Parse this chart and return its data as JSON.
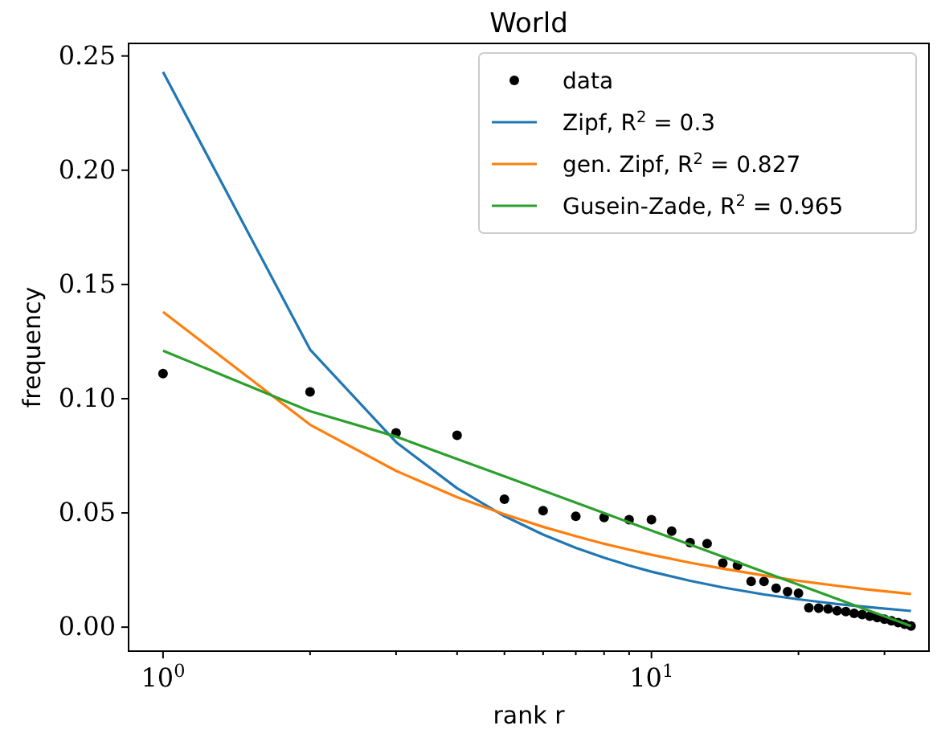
{
  "chart_data": {
    "type": "scatter",
    "title": "World",
    "xlabel": "rank r",
    "ylabel": "frequency",
    "log": "x",
    "legend": "top right",
    "grid": false,
    "xlim": [
      0.85,
      37
    ],
    "xticks": [
      {
        "value": 1,
        "label": "10$^{0}$"
      },
      {
        "value": 10,
        "label": "10$^{1}$"
      },
      {
        "value": 2,
        "label": null
      },
      {
        "value": 3,
        "label": null
      },
      {
        "value": 4,
        "label": null
      },
      {
        "value": 5,
        "label": null
      },
      {
        "value": 6,
        "label": null
      },
      {
        "value": 7,
        "label": null
      },
      {
        "value": 8,
        "label": null
      },
      {
        "value": 9,
        "label": null
      },
      {
        "value": 20,
        "label": null
      },
      {
        "value": 30,
        "label": null
      }
    ],
    "ylim": [
      -0.0105,
      0.2555
    ],
    "yticks": [
      {
        "value": 0,
        "label": "0.00"
      },
      {
        "value": 0.05,
        "label": "0.05"
      },
      {
        "value": 0.1,
        "label": "0.10"
      },
      {
        "value": 0.15,
        "label": "0.15"
      },
      {
        "value": 0.2,
        "label": "0.20"
      },
      {
        "value": 0.25,
        "label": "0.25"
      }
    ],
    "series": [
      {
        "name": "data",
        "marker": "circle",
        "color": "#000000",
        "x": [
          1,
          2,
          3,
          4,
          5,
          6,
          7,
          8,
          9,
          10,
          11,
          12,
          13,
          14,
          15,
          16,
          17,
          18,
          19,
          20,
          21,
          22,
          23,
          24,
          25,
          26,
          27,
          28,
          29,
          30,
          31,
          32,
          33,
          34
        ],
        "values": [
          0.111,
          0.103,
          0.085,
          0.084,
          0.056,
          0.051,
          0.0485,
          0.048,
          0.047,
          0.047,
          0.042,
          0.037,
          0.0366,
          0.028,
          0.027,
          0.02,
          0.02,
          0.017,
          0.0155,
          0.0148,
          0.0085,
          0.0083,
          0.008,
          0.0072,
          0.0068,
          0.006,
          0.0055,
          0.0048,
          0.0042,
          0.0035,
          0.0028,
          0.002,
          0.0013,
          0.0005
        ]
      },
      {
        "name": "Zipf, R$^{2}$ = 0.3",
        "type": "line",
        "marker": "none",
        "color": "#1f77b4",
        "x": [
          1,
          2,
          3,
          4,
          5,
          6,
          7,
          8,
          9,
          10,
          12,
          14,
          17,
          20,
          24,
          28,
          34
        ],
        "values": [
          0.243,
          0.1215,
          0.081,
          0.0608,
          0.0486,
          0.0405,
          0.0347,
          0.0304,
          0.027,
          0.0243,
          0.0203,
          0.0174,
          0.0143,
          0.0122,
          0.0101,
          0.0087,
          0.0071
        ]
      },
      {
        "name": "gen. Zipf, R$^{2}$ = 0.827",
        "type": "line",
        "marker": "none",
        "color": "#ff7f0e",
        "x": [
          1,
          2,
          3,
          4,
          5,
          6,
          7,
          8,
          9,
          10,
          12,
          14,
          17,
          20,
          24,
          28,
          34
        ],
        "values": [
          0.138,
          0.0886,
          0.0684,
          0.0569,
          0.0494,
          0.0439,
          0.0398,
          0.0365,
          0.0339,
          0.0317,
          0.0282,
          0.0256,
          0.0226,
          0.0203,
          0.0181,
          0.0164,
          0.0145
        ]
      },
      {
        "name": "Gusein-Zade, R$^{2}$ = 0.965",
        "type": "line",
        "marker": "none",
        "color": "#2ca02c",
        "x": [
          1,
          2,
          3,
          4,
          5,
          6,
          7,
          8,
          9,
          10,
          12,
          14,
          17,
          20,
          24,
          28,
          34
        ],
        "values": [
          0.121,
          0.0945,
          0.0834,
          0.0736,
          0.066,
          0.0598,
          0.0545,
          0.0499,
          0.0459,
          0.0423,
          0.0361,
          0.0308,
          0.0242,
          0.0186,
          0.0124,
          0.0071,
          0.0005
        ]
      }
    ]
  }
}
